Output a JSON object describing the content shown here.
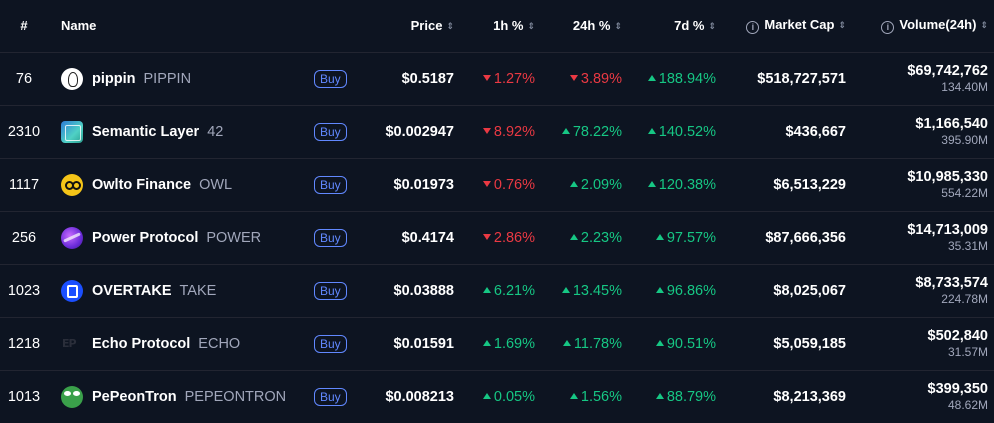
{
  "columns": {
    "rank": "#",
    "name": "Name",
    "price": "Price",
    "change_1h": "1h %",
    "change_24h": "24h %",
    "change_7d": "7d %",
    "market_cap": "Market Cap",
    "volume": "Volume(24h)"
  },
  "buy_label": "Buy",
  "colors": {
    "up": "#16c784",
    "down": "#ea3943",
    "accent": "#6188ff",
    "background": "#0d1421"
  },
  "rows": [
    {
      "rank": "76",
      "name": "pippin",
      "symbol": "PIPPIN",
      "logo_icon": "pippin-logo-icon",
      "price": "$0.5187",
      "h1": "1.27%",
      "h1_dir": "down",
      "h24": "3.89%",
      "h24_dir": "down",
      "d7": "188.94%",
      "d7_dir": "up",
      "market_cap": "$518,727,571",
      "volume": "$69,742,762",
      "volume_sub": "134.40M"
    },
    {
      "rank": "2310",
      "name": "Semantic Layer",
      "symbol": "42",
      "logo_icon": "semantic-logo-icon",
      "price": "$0.002947",
      "h1": "8.92%",
      "h1_dir": "down",
      "h24": "78.22%",
      "h24_dir": "up",
      "d7": "140.52%",
      "d7_dir": "up",
      "market_cap": "$436,667",
      "volume": "$1,166,540",
      "volume_sub": "395.90M"
    },
    {
      "rank": "1117",
      "name": "Owlto Finance",
      "symbol": "OWL",
      "logo_icon": "owlto-logo-icon",
      "price": "$0.01973",
      "h1": "0.76%",
      "h1_dir": "down",
      "h24": "2.09%",
      "h24_dir": "up",
      "d7": "120.38%",
      "d7_dir": "up",
      "market_cap": "$6,513,229",
      "volume": "$10,985,330",
      "volume_sub": "554.22M"
    },
    {
      "rank": "256",
      "name": "Power Protocol",
      "symbol": "POWER",
      "logo_icon": "power-logo-icon",
      "price": "$0.4174",
      "h1": "2.86%",
      "h1_dir": "down",
      "h24": "2.23%",
      "h24_dir": "up",
      "d7": "97.57%",
      "d7_dir": "up",
      "market_cap": "$87,666,356",
      "volume": "$14,713,009",
      "volume_sub": "35.31M"
    },
    {
      "rank": "1023",
      "name": "OVERTAKE",
      "symbol": "TAKE",
      "logo_icon": "overtake-logo-icon",
      "price": "$0.03888",
      "h1": "6.21%",
      "h1_dir": "up",
      "h24": "13.45%",
      "h24_dir": "up",
      "d7": "96.86%",
      "d7_dir": "up",
      "market_cap": "$8,025,067",
      "volume": "$8,733,574",
      "volume_sub": "224.78M"
    },
    {
      "rank": "1218",
      "name": "Echo Protocol",
      "symbol": "ECHO",
      "logo_icon": "echo-logo-icon",
      "price": "$0.01591",
      "h1": "1.69%",
      "h1_dir": "up",
      "h24": "11.78%",
      "h24_dir": "up",
      "d7": "90.51%",
      "d7_dir": "up",
      "market_cap": "$5,059,185",
      "volume": "$502,840",
      "volume_sub": "31.57M"
    },
    {
      "rank": "1013",
      "name": "PePeonTron",
      "symbol": "PEPEONTRON",
      "logo_icon": "pepe-logo-icon",
      "price": "$0.008213",
      "h1": "0.05%",
      "h1_dir": "up",
      "h24": "1.56%",
      "h24_dir": "up",
      "d7": "88.79%",
      "d7_dir": "up",
      "market_cap": "$8,213,369",
      "volume": "$399,350",
      "volume_sub": "48.62M"
    }
  ]
}
